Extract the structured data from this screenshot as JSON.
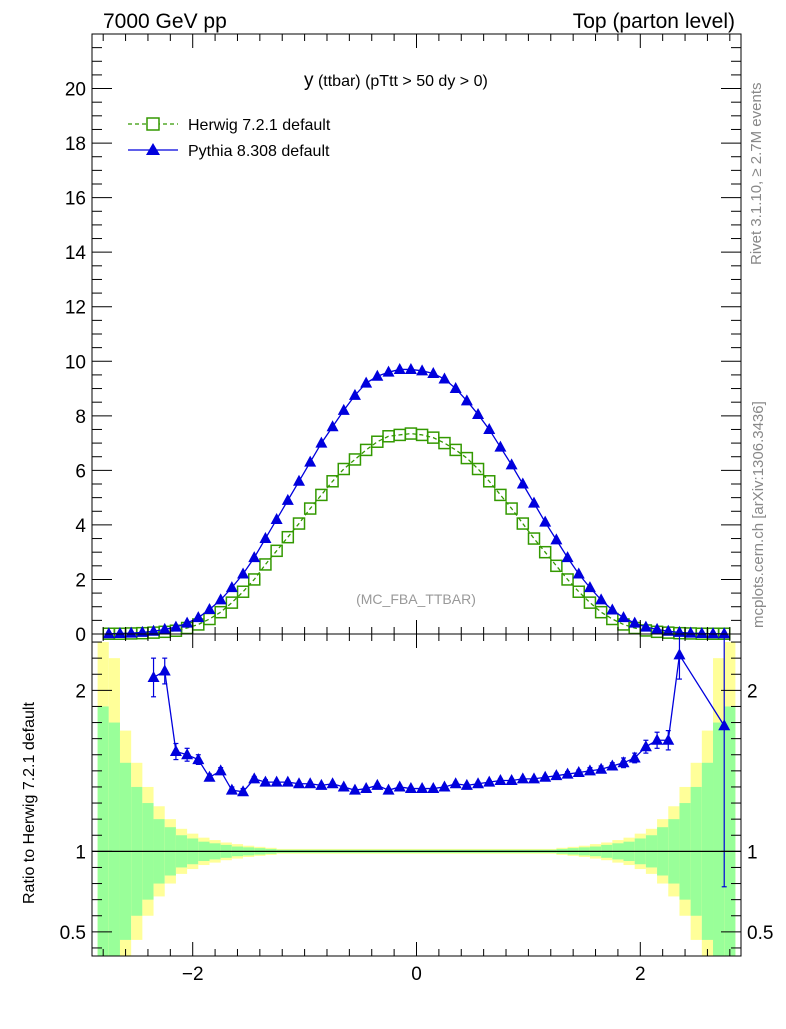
{
  "header": {
    "left": "7000 GeV pp",
    "right": "Top (parton level)"
  },
  "side_labels": {
    "rivet": "Rivet 3.1.10, ≥ 2.7M events",
    "mcplots": "mcplots.cern.ch [arXiv:1306.3436]"
  },
  "colors": {
    "herwig": "#339900",
    "pythia": "#0000dd",
    "band_inner": "#99ff99",
    "band_outer": "#ffff99"
  },
  "chart_data": [
    {
      "type": "line",
      "title_main": "y",
      "title_rest": " (ttbar) (pTtt > 50 dy > 0)",
      "watermark": "(MC_FBA_TTBAR)",
      "xlim": [
        -2.9,
        2.9
      ],
      "ylim": [
        0,
        22
      ],
      "yticks": [
        0,
        2,
        4,
        6,
        8,
        10,
        12,
        14,
        16,
        18,
        20
      ],
      "x": [
        -2.75,
        -2.65,
        -2.55,
        -2.45,
        -2.35,
        -2.25,
        -2.15,
        -2.05,
        -1.95,
        -1.85,
        -1.75,
        -1.65,
        -1.55,
        -1.45,
        -1.35,
        -1.25,
        -1.15,
        -1.05,
        -0.95,
        -0.85,
        -0.75,
        -0.65,
        -0.55,
        -0.45,
        -0.35,
        -0.25,
        -0.15,
        -0.05,
        0.05,
        0.15,
        0.25,
        0.35,
        0.45,
        0.55,
        0.65,
        0.75,
        0.85,
        0.95,
        1.05,
        1.15,
        1.25,
        1.35,
        1.45,
        1.55,
        1.65,
        1.75,
        1.85,
        1.95,
        2.05,
        2.15,
        2.25,
        2.35,
        2.45,
        2.55,
        2.65,
        2.75
      ],
      "series": [
        {
          "name": "Herwig 7.2.1 default",
          "marker": "open-square",
          "values": [
            0.01,
            0.01,
            0.02,
            0.03,
            0.05,
            0.08,
            0.12,
            0.22,
            0.35,
            0.55,
            0.8,
            1.15,
            1.55,
            2.0,
            2.55,
            3.05,
            3.55,
            4.05,
            4.6,
            5.1,
            5.6,
            6.05,
            6.4,
            6.75,
            7.05,
            7.25,
            7.3,
            7.35,
            7.3,
            7.2,
            7.0,
            6.75,
            6.45,
            6.05,
            5.6,
            5.1,
            4.6,
            4.05,
            3.5,
            3.0,
            2.5,
            2.0,
            1.55,
            1.15,
            0.8,
            0.55,
            0.35,
            0.22,
            0.13,
            0.08,
            0.05,
            0.03,
            0.02,
            0.01,
            0.01,
            0.01
          ]
        },
        {
          "name": "Pythia 8.308 default",
          "marker": "filled-triangle",
          "values": [
            0.01,
            0.02,
            0.03,
            0.06,
            0.1,
            0.17,
            0.25,
            0.4,
            0.6,
            0.9,
            1.25,
            1.7,
            2.2,
            2.8,
            3.5,
            4.2,
            4.9,
            5.6,
            6.3,
            7.0,
            7.6,
            8.2,
            8.75,
            9.2,
            9.45,
            9.6,
            9.7,
            9.7,
            9.65,
            9.55,
            9.35,
            9.0,
            8.55,
            8.05,
            7.5,
            6.85,
            6.2,
            5.5,
            4.8,
            4.1,
            3.45,
            2.8,
            2.2,
            1.7,
            1.25,
            0.88,
            0.6,
            0.4,
            0.25,
            0.17,
            0.1,
            0.06,
            0.03,
            0.02,
            0.01,
            0.01
          ]
        }
      ]
    },
    {
      "type": "line",
      "ylabel": "Ratio to Herwig 7.2.1 default",
      "xlim": [
        -2.9,
        2.9
      ],
      "ylim": [
        0.35,
        2.35
      ],
      "xticks": [
        -2,
        0,
        2
      ],
      "xticklabels": [
        "−2",
        "0",
        "2"
      ],
      "yticks": [
        0.5,
        1,
        2
      ],
      "yticklabels": [
        "0.5",
        "1",
        "2"
      ],
      "reference": 1,
      "x": [
        -2.35,
        -2.25,
        -2.15,
        -2.05,
        -1.95,
        -1.85,
        -1.75,
        -1.65,
        -1.55,
        -1.45,
        -1.35,
        -1.25,
        -1.15,
        -1.05,
        -0.95,
        -0.85,
        -0.75,
        -0.65,
        -0.55,
        -0.45,
        -0.35,
        -0.25,
        -0.15,
        -0.05,
        0.05,
        0.15,
        0.25,
        0.35,
        0.45,
        0.55,
        0.65,
        0.75,
        0.85,
        0.95,
        1.05,
        1.15,
        1.25,
        1.35,
        1.45,
        1.55,
        1.65,
        1.75,
        1.85,
        1.95,
        2.05,
        2.15,
        2.25,
        2.35,
        2.75
      ],
      "series": [
        {
          "name": "Pythia 8.308 default",
          "values": [
            2.08,
            2.12,
            1.62,
            1.6,
            1.57,
            1.46,
            1.5,
            1.38,
            1.37,
            1.45,
            1.43,
            1.43,
            1.43,
            1.42,
            1.42,
            1.41,
            1.42,
            1.4,
            1.38,
            1.39,
            1.41,
            1.38,
            1.4,
            1.39,
            1.39,
            1.39,
            1.4,
            1.42,
            1.41,
            1.42,
            1.43,
            1.44,
            1.44,
            1.45,
            1.45,
            1.46,
            1.47,
            1.48,
            1.49,
            1.5,
            1.51,
            1.53,
            1.55,
            1.58,
            1.65,
            1.69,
            1.69,
            2.22,
            1.78
          ],
          "err": [
            0.12,
            0.08,
            0.05,
            0.04,
            0.03,
            0.02,
            0.02,
            0.02,
            0.02,
            0.015,
            0.015,
            0.01,
            0.01,
            0.01,
            0.01,
            0.01,
            0.01,
            0.01,
            0.01,
            0.01,
            0.01,
            0.01,
            0.01,
            0.01,
            0.01,
            0.01,
            0.01,
            0.01,
            0.01,
            0.01,
            0.01,
            0.01,
            0.01,
            0.01,
            0.01,
            0.01,
            0.015,
            0.015,
            0.015,
            0.02,
            0.02,
            0.02,
            0.03,
            0.03,
            0.04,
            0.05,
            0.06,
            0.15,
            1.0
          ]
        }
      ],
      "bands": {
        "edges": [
          -2.85,
          -2.75,
          -2.65,
          -2.55,
          -2.45,
          -2.35,
          -2.25,
          -2.15,
          -2.05,
          -1.95,
          -1.85,
          -1.75,
          -1.65,
          -1.55,
          -1.45,
          -1.35,
          -1.25,
          1.25,
          1.35,
          1.45,
          1.55,
          1.65,
          1.75,
          1.85,
          1.95,
          2.05,
          2.15,
          2.25,
          2.35,
          2.45,
          2.55,
          2.65,
          2.75,
          2.85
        ],
        "inner_halfwidth": [
          0.9,
          0.8,
          0.55,
          0.4,
          0.3,
          0.2,
          0.15,
          0.1,
          0.08,
          0.06,
          0.05,
          0.04,
          0.03,
          0.025,
          0.02,
          0.015,
          0.01,
          0.015,
          0.02,
          0.025,
          0.03,
          0.04,
          0.05,
          0.06,
          0.08,
          0.1,
          0.15,
          0.2,
          0.3,
          0.4,
          0.55,
          0.8,
          0.9
        ],
        "outer_halfwidth": [
          1.3,
          1.2,
          0.75,
          0.55,
          0.4,
          0.28,
          0.2,
          0.14,
          0.11,
          0.085,
          0.07,
          0.055,
          0.045,
          0.035,
          0.028,
          0.022,
          0.015,
          0.022,
          0.028,
          0.035,
          0.045,
          0.055,
          0.07,
          0.085,
          0.11,
          0.14,
          0.2,
          0.28,
          0.4,
          0.55,
          0.75,
          1.2,
          1.3
        ]
      }
    }
  ]
}
